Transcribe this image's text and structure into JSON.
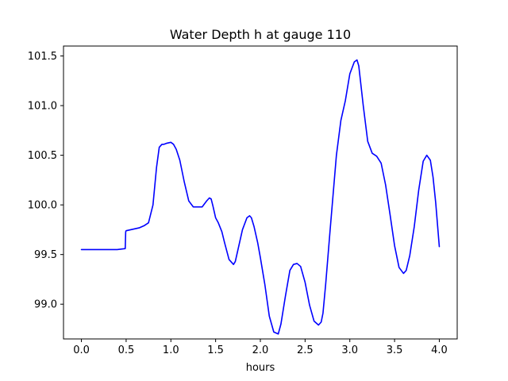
{
  "chart_data": {
    "type": "line",
    "title": "Water Depth h at gauge 110",
    "xlabel": "hours",
    "ylabel": "",
    "xlim": [
      -0.2,
      4.2
    ],
    "ylim": [
      98.65,
      101.6
    ],
    "xticks": [
      0.0,
      0.5,
      1.0,
      1.5,
      2.0,
      2.5,
      3.0,
      3.5,
      4.0
    ],
    "xtick_labels": [
      "0.0",
      "0.5",
      "1.0",
      "1.5",
      "2.0",
      "2.5",
      "3.0",
      "3.5",
      "4.0"
    ],
    "yticks": [
      99.0,
      99.5,
      100.0,
      100.5,
      101.0,
      101.5
    ],
    "ytick_labels": [
      "99.0",
      "99.5",
      "100.0",
      "100.5",
      "101.0",
      "101.5"
    ],
    "grid": false,
    "legend": "none",
    "series": [
      {
        "color": "#0000ff",
        "x": [
          0.0,
          0.1,
          0.2,
          0.3,
          0.4,
          0.49,
          0.495,
          0.5,
          0.55,
          0.6,
          0.65,
          0.7,
          0.75,
          0.8,
          0.84,
          0.87,
          0.9,
          0.92,
          0.95,
          1.0,
          1.03,
          1.06,
          1.1,
          1.15,
          1.2,
          1.25,
          1.3,
          1.35,
          1.4,
          1.43,
          1.45,
          1.47,
          1.5,
          1.53,
          1.57,
          1.6,
          1.65,
          1.7,
          1.72,
          1.75,
          1.8,
          1.85,
          1.88,
          1.9,
          1.93,
          1.97,
          2.0,
          2.05,
          2.1,
          2.15,
          2.2,
          2.23,
          2.28,
          2.33,
          2.37,
          2.41,
          2.45,
          2.5,
          2.55,
          2.6,
          2.65,
          2.68,
          2.7,
          2.73,
          2.78,
          2.85,
          2.9,
          2.95,
          3.0,
          3.05,
          3.08,
          3.1,
          3.15,
          3.2,
          3.25,
          3.3,
          3.35,
          3.4,
          3.45,
          3.5,
          3.55,
          3.6,
          3.63,
          3.67,
          3.72,
          3.77,
          3.82,
          3.86,
          3.9,
          3.93,
          3.96,
          4.0
        ],
        "y": [
          99.55,
          99.55,
          99.55,
          99.55,
          99.55,
          99.56,
          99.73,
          99.74,
          99.75,
          99.76,
          99.77,
          99.79,
          99.82,
          100.0,
          100.38,
          100.58,
          100.61,
          100.61,
          100.62,
          100.63,
          100.61,
          100.56,
          100.45,
          100.23,
          100.04,
          99.98,
          99.98,
          99.98,
          100.04,
          100.07,
          100.06,
          99.99,
          99.87,
          99.82,
          99.73,
          99.62,
          99.45,
          99.4,
          99.43,
          99.55,
          99.75,
          99.87,
          99.89,
          99.87,
          99.78,
          99.62,
          99.47,
          99.2,
          98.88,
          98.72,
          98.7,
          98.8,
          99.08,
          99.34,
          99.4,
          99.41,
          99.38,
          99.22,
          98.99,
          98.83,
          98.79,
          98.82,
          98.91,
          99.2,
          99.75,
          100.5,
          100.85,
          101.05,
          101.32,
          101.44,
          101.46,
          101.4,
          101.0,
          100.64,
          100.52,
          100.49,
          100.42,
          100.2,
          99.9,
          99.59,
          99.37,
          99.31,
          99.34,
          99.49,
          99.78,
          100.15,
          100.44,
          100.5,
          100.45,
          100.28,
          100.02,
          99.58
        ]
      }
    ]
  }
}
